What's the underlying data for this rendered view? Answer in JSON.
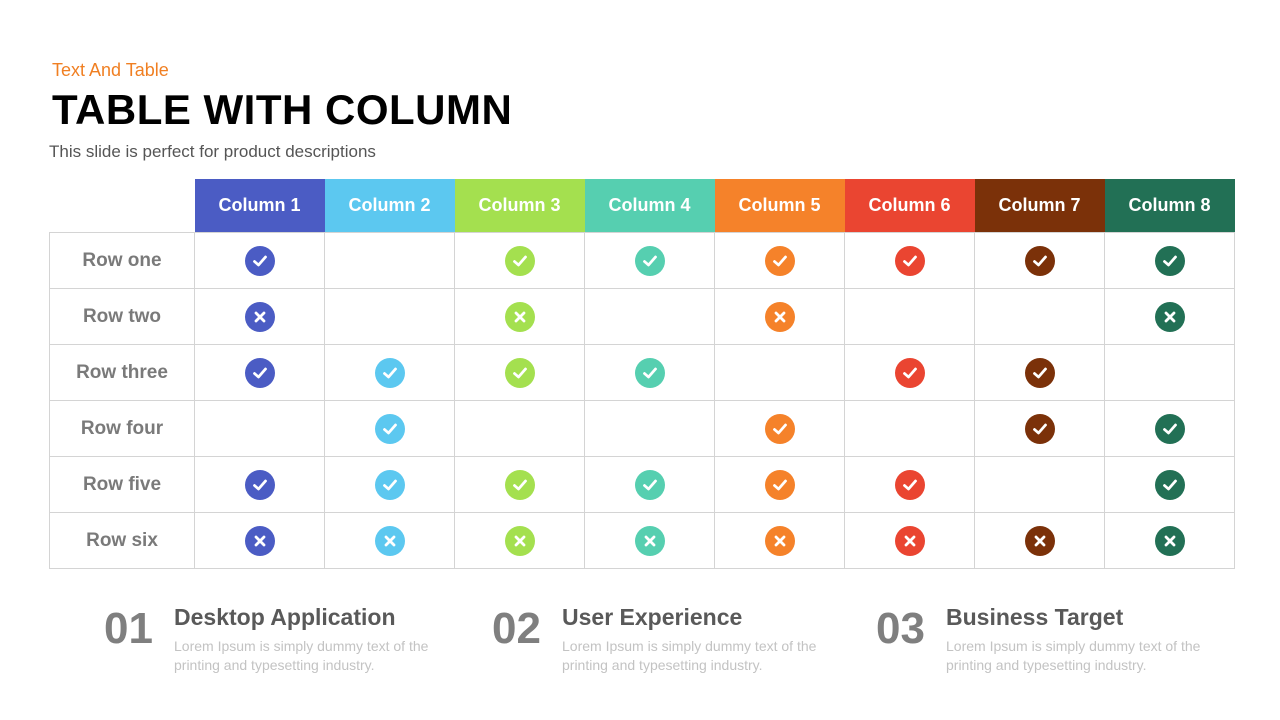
{
  "header": {
    "kicker": "Text And Table",
    "title": "TABLE WITH COLUMN",
    "description": "This slide is perfect for product descriptions"
  },
  "table": {
    "columns": [
      {
        "label": "Column 1",
        "color": "#4b5cc4"
      },
      {
        "label": "Column 2",
        "color": "#5cc8f0"
      },
      {
        "label": "Column 3",
        "color": "#a4e04f"
      },
      {
        "label": "Column 4",
        "color": "#56cfb0"
      },
      {
        "label": "Column 5",
        "color": "#f5822a"
      },
      {
        "label": "Column 6",
        "color": "#ea4531"
      },
      {
        "label": "Column 7",
        "color": "#7b3109"
      },
      {
        "label": "Column 8",
        "color": "#227055"
      }
    ],
    "rows": [
      {
        "label": "Row one",
        "cells": [
          "check",
          "",
          "check",
          "check",
          "check",
          "check",
          "check",
          "check"
        ]
      },
      {
        "label": "Row two",
        "cells": [
          "cross",
          "",
          "cross",
          "",
          "cross",
          "",
          "",
          "cross"
        ]
      },
      {
        "label": "Row three",
        "cells": [
          "check",
          "check",
          "check",
          "check",
          "",
          "check",
          "check",
          ""
        ]
      },
      {
        "label": "Row four",
        "cells": [
          "",
          "check",
          "",
          "",
          "check",
          "",
          "check",
          "check"
        ]
      },
      {
        "label": "Row five",
        "cells": [
          "check",
          "check",
          "check",
          "check",
          "check",
          "check",
          "",
          "check"
        ]
      },
      {
        "label": "Row six",
        "cells": [
          "cross",
          "cross",
          "cross",
          "cross",
          "cross",
          "cross",
          "cross",
          "cross"
        ]
      }
    ],
    "icons": {
      "check": "check-icon",
      "cross": "cross-icon"
    }
  },
  "features": [
    {
      "number": "01",
      "title": "Desktop Application",
      "body": "Lorem Ipsum is simply dummy text of the printing and typesetting industry."
    },
    {
      "number": "02",
      "title": "User Experience",
      "body": "Lorem Ipsum is simply dummy text of the printing and typesetting industry."
    },
    {
      "number": "03",
      "title": "Business Target",
      "body": "Lorem Ipsum is simply dummy text of the printing and typesetting industry."
    }
  ]
}
